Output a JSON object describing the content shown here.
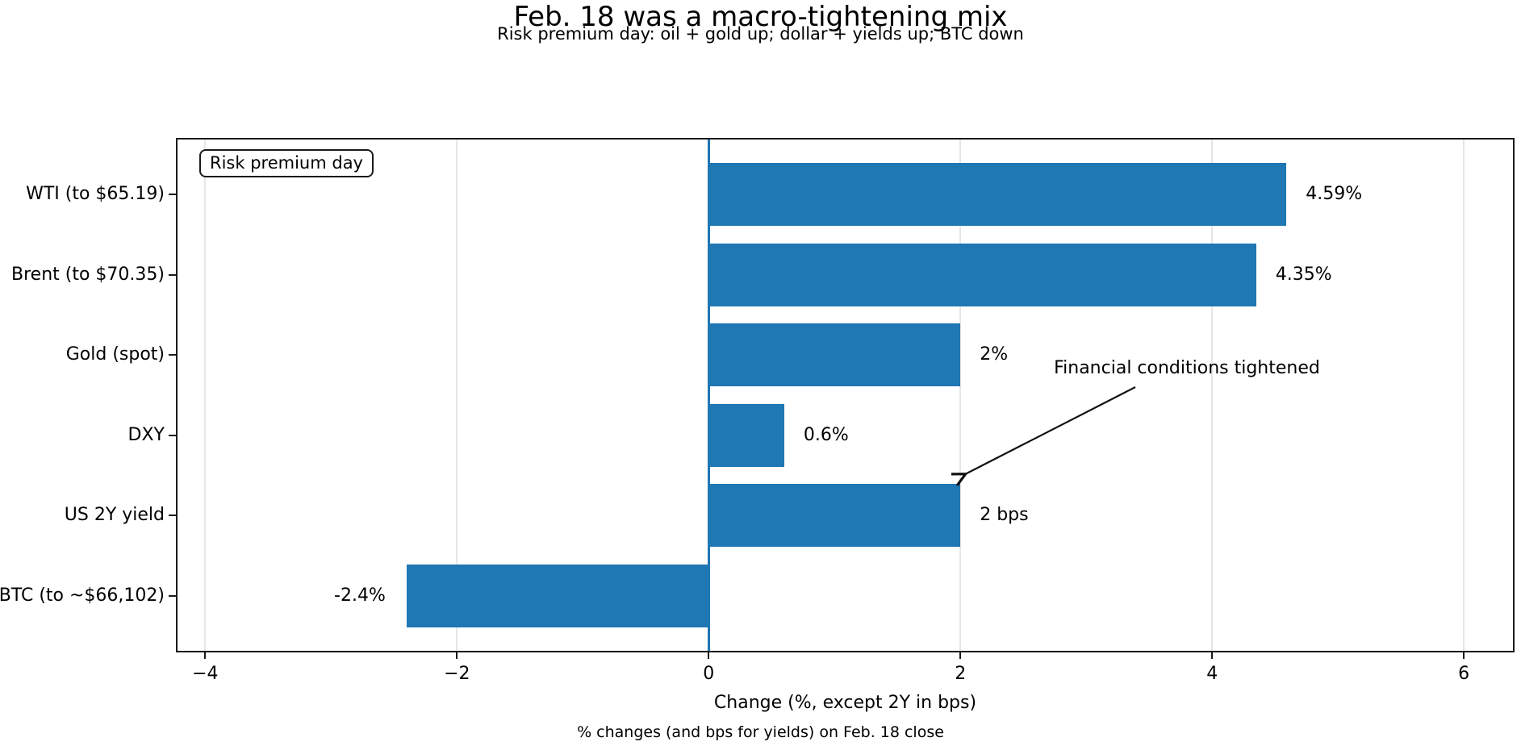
{
  "figure": {
    "title": "Feb. 18 was a macro-tightening mix",
    "subtitle": "Risk premium day: oil + gold up; dollar + yields up; BTC down",
    "footer": "% changes (and bps for yields) on Feb. 18 close"
  },
  "chart_data": {
    "type": "bar",
    "orientation": "horizontal",
    "title": "Feb. 18 was a macro-tightening mix",
    "subtitle": "Risk premium day: oil + gold up; dollar + yields up; BTC down",
    "xlabel": "Change (%, except 2Y in bps)",
    "footnote": "% changes (and bps for yields) on Feb. 18 close",
    "categories": [
      "WTI (to $65.19)",
      "Brent (to $70.35)",
      "Gold (spot)",
      "DXY",
      "US 2Y yield",
      "BTC (to ~$66,102)"
    ],
    "values": [
      4.59,
      4.35,
      2,
      0.6,
      2,
      -2.4
    ],
    "value_labels": [
      "4.59%",
      "4.35%",
      "2%",
      "0.6%",
      "2 bps",
      "-2.4%"
    ],
    "units_note": "2Y value is in bps, others in %",
    "bar_color": "#1f77b4",
    "zero_line": {
      "x": 0,
      "color": "#1f77b4"
    },
    "xlim": [
      -4.22,
      6.39
    ],
    "x_ticks": [
      -4,
      -2,
      0,
      2,
      4,
      6
    ],
    "x_tick_labels": [
      "−4",
      "−2",
      "0",
      "2",
      "4",
      "6"
    ],
    "grid": true,
    "grid_color": "#e6e6e6",
    "legend_label": "Risk premium day",
    "legend_position": "upper left",
    "annotation": {
      "text": "Financial conditions tightened",
      "text_center_xy": [
        3.8,
        2.19
      ],
      "arrow_from_xy": [
        3.39,
        2.4
      ],
      "arrow_to_xy": [
        2.03,
        3.49
      ],
      "points_to": "US 2Y yield bar"
    }
  }
}
